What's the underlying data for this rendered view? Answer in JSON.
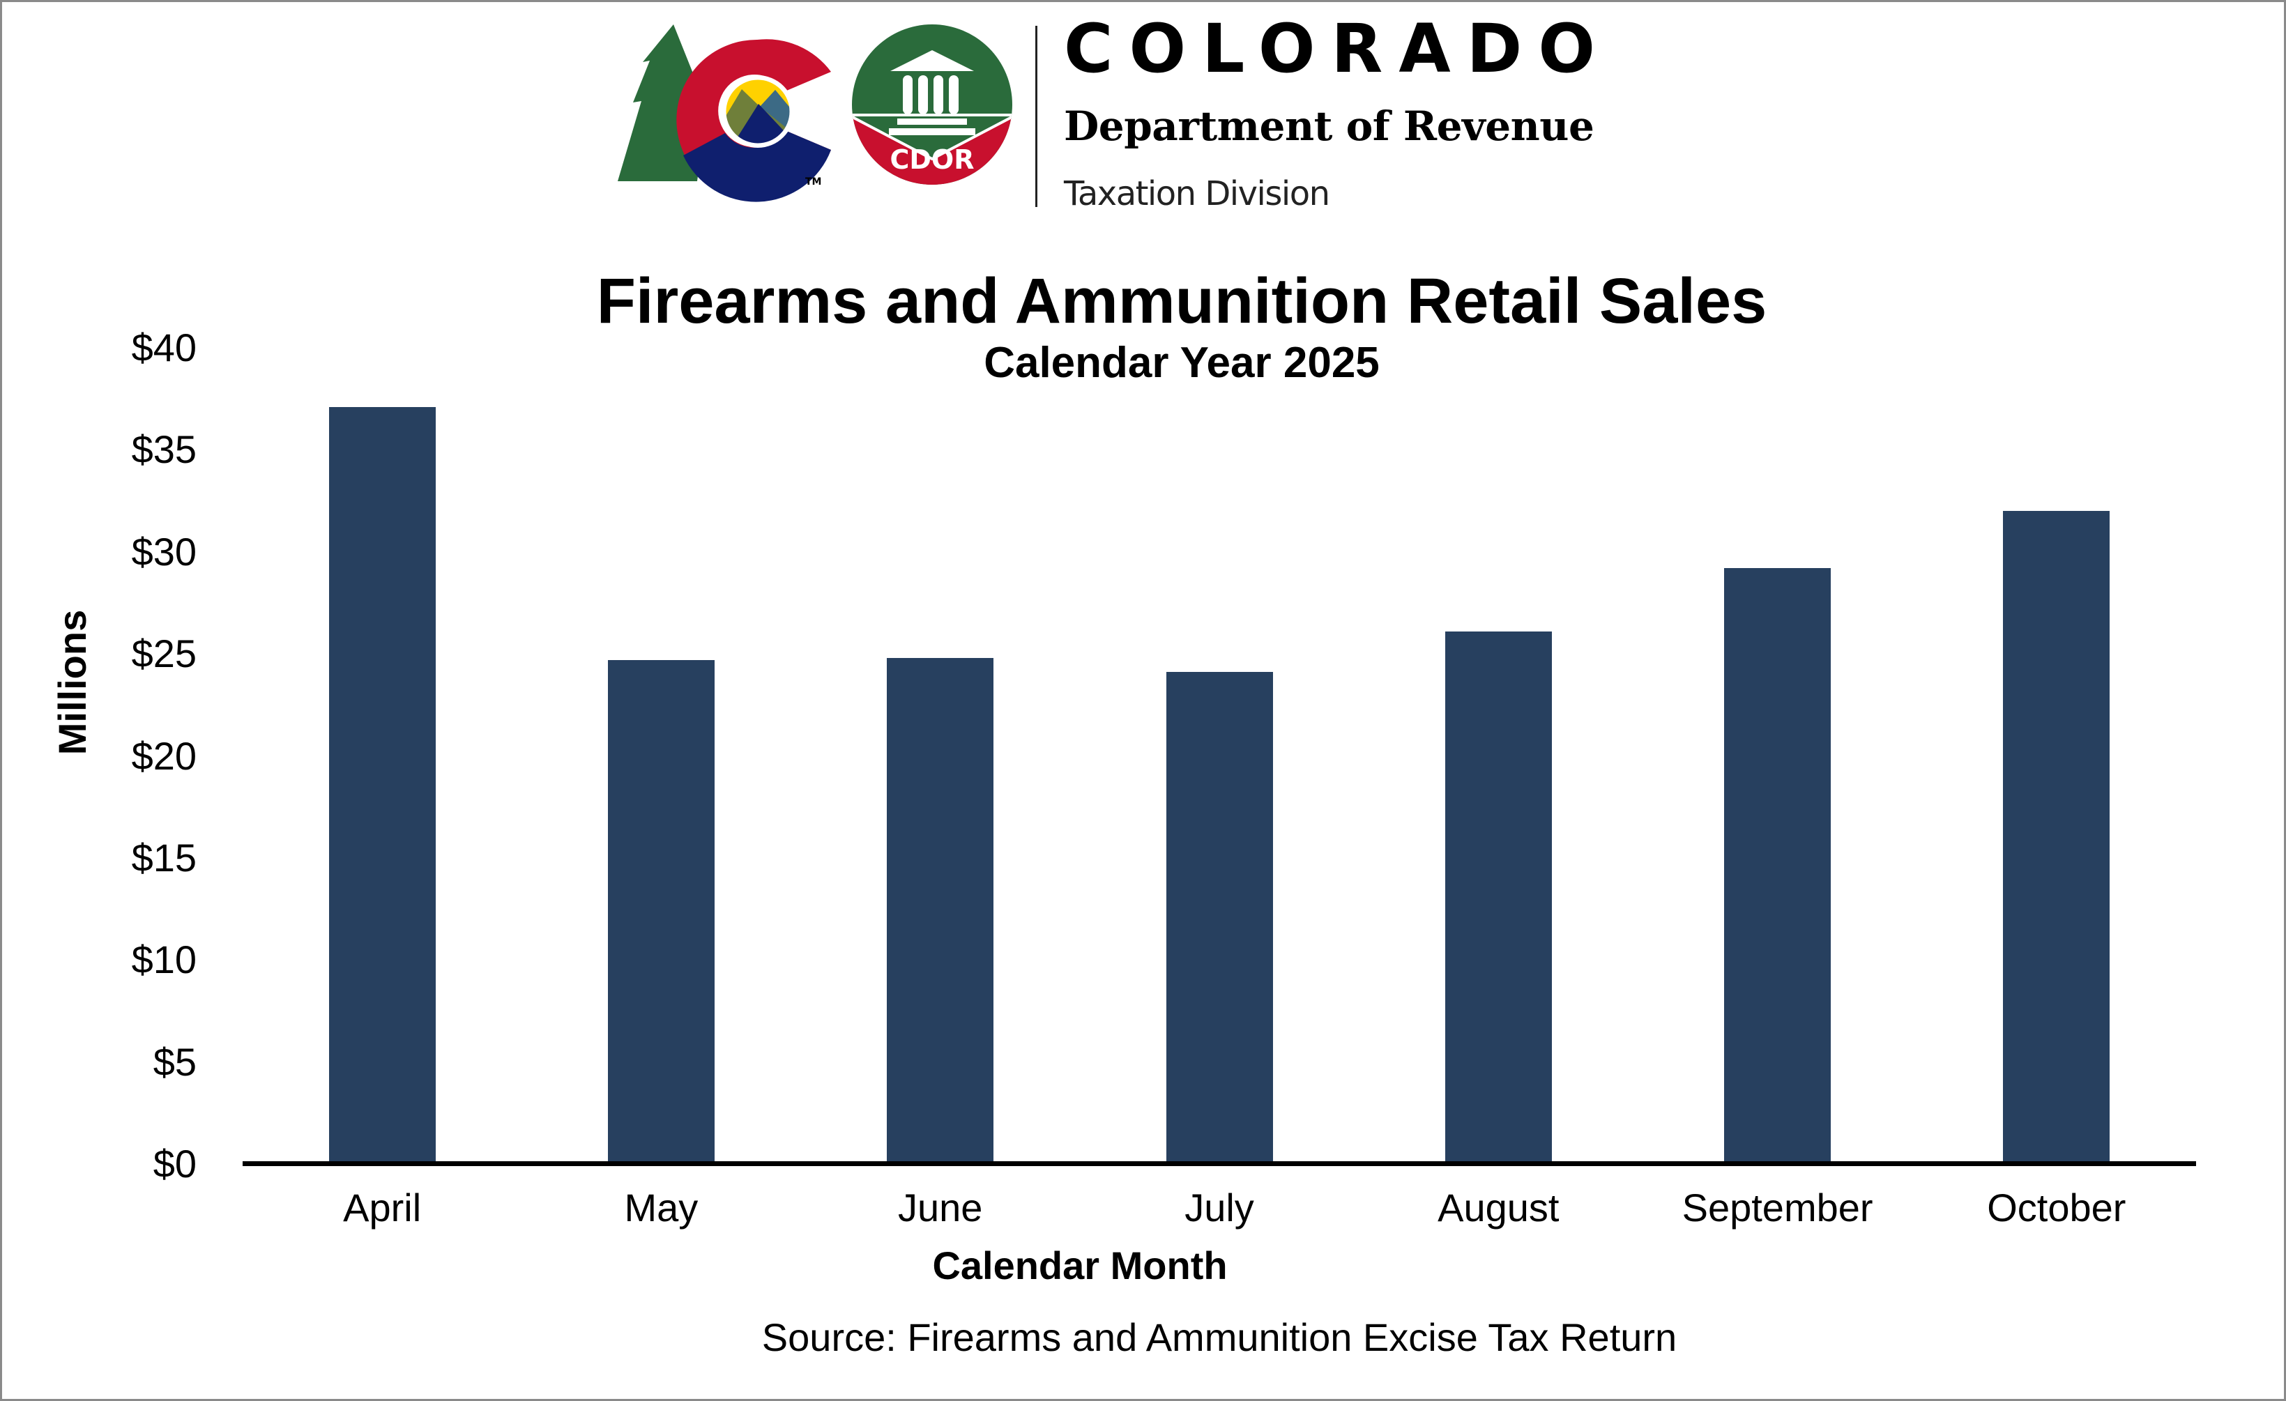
{
  "header": {
    "brand_name": "COLORADO",
    "department": "Department of Revenue",
    "division": "Taxation Division",
    "badge_text": "CDOR",
    "trademark": "TM"
  },
  "colors": {
    "bar": "#27405f",
    "border": "#8a8a8a",
    "logo_red": "#c8102e",
    "logo_blue": "#0f1f6e",
    "logo_green": "#2a6b3b",
    "logo_yellow": "#ffd100"
  },
  "chart_data": {
    "type": "bar",
    "title": "Firearms and Ammunition Retail Sales",
    "subtitle": "Calendar Year 2025",
    "xlabel": "Calendar Month",
    "ylabel": "Millions",
    "categories": [
      "April",
      "May",
      "June",
      "July",
      "August",
      "September",
      "October"
    ],
    "values": [
      37.1,
      24.7,
      24.8,
      24.1,
      26.1,
      29.2,
      32.0
    ],
    "units": "USD millions",
    "ylim": [
      0,
      40
    ],
    "yticks": [
      "$0",
      "$5",
      "$10",
      "$15",
      "$20",
      "$25",
      "$30",
      "$35",
      "$40"
    ],
    "ytick_values": [
      0,
      5,
      10,
      15,
      20,
      25,
      30,
      35,
      40
    ],
    "grid": false,
    "legend": null,
    "source": "Source: Firearms and Ammunition Excise Tax Return"
  }
}
